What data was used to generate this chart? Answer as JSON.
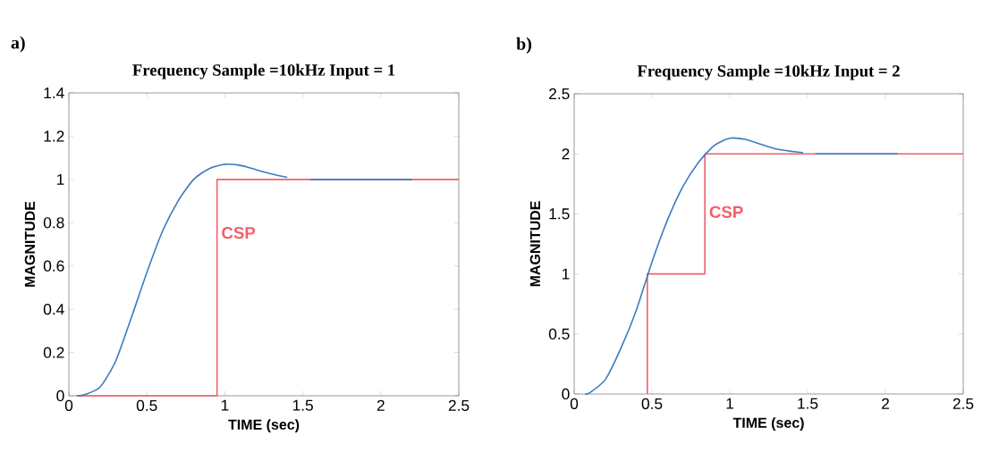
{
  "chart_data": [
    {
      "type": "line",
      "title": "Frequency Sample =10kHz  Input = 1",
      "xlabel": "TIME (sec)",
      "ylabel": "MAGNITUDE",
      "annotations": [
        "a)"
      ],
      "xlim": [
        0,
        2.5
      ],
      "ylim": [
        0,
        1.4
      ],
      "xticks": [
        0,
        0.5,
        1,
        1.5,
        2,
        2.5
      ],
      "yticks": [
        0,
        0.2,
        0.4,
        0.6,
        0.8,
        1,
        1.2,
        1.4
      ],
      "series": [
        {
          "color": "#3a7cc0",
          "x": [
            0.05,
            0.1,
            0.2,
            0.3,
            0.4,
            0.5,
            0.6,
            0.7,
            0.8,
            0.9,
            1.0,
            1.1,
            1.2,
            1.3,
            1.4,
            1.48,
            1.55,
            2.2
          ],
          "values": [
            0,
            0.005,
            0.04,
            0.16,
            0.36,
            0.57,
            0.76,
            0.9,
            1.0,
            1.05,
            1.07,
            1.065,
            1.045,
            1.025,
            1.01,
            null,
            1.0,
            1.0
          ]
        },
        {
          "type": "step",
          "name": "CSP",
          "color": "#f0606a",
          "x": [
            0.05,
            0.95,
            2.5
          ],
          "values": [
            0,
            1,
            1
          ]
        }
      ]
    },
    {
      "type": "line",
      "title": "Frequency Sample =10kHz  Input = 2",
      "xlabel": "TIME (sec)",
      "ylabel": "MAGNITUDE",
      "annotations": [
        "b)"
      ],
      "xlim": [
        0,
        2.5
      ],
      "ylim": [
        0,
        2.5
      ],
      "xticks": [
        0,
        0.5,
        1,
        1.5,
        2,
        2.5
      ],
      "yticks": [
        0,
        0.5,
        1,
        1.5,
        2,
        2.5
      ],
      "series": [
        {
          "color": "#3a7cc0",
          "x": [
            0.07,
            0.1,
            0.2,
            0.3,
            0.4,
            0.5,
            0.6,
            0.7,
            0.8,
            0.9,
            1.0,
            1.1,
            1.2,
            1.3,
            1.4,
            1.47,
            1.51,
            1.55,
            2.08
          ],
          "values": [
            0,
            0.01,
            0.12,
            0.38,
            0.7,
            1.1,
            1.45,
            1.73,
            1.93,
            2.07,
            2.13,
            2.12,
            2.08,
            2.04,
            2.02,
            2.01,
            null,
            2.0,
            2.0
          ]
        },
        {
          "type": "step",
          "name": "CSP",
          "color": "#f0606a",
          "x": [
            0.47,
            0.47,
            0.84,
            2.5
          ],
          "values": [
            0,
            1,
            2,
            2
          ]
        }
      ]
    }
  ]
}
